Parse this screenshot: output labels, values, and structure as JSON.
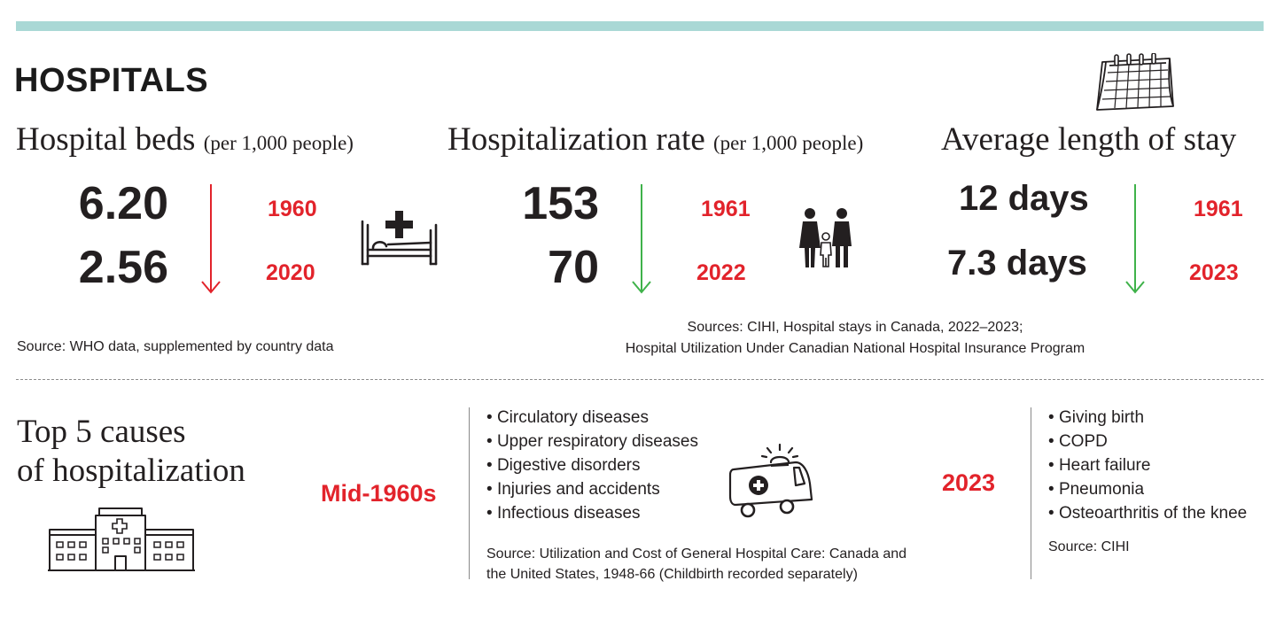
{
  "section_title": "HOSPITALS",
  "beds": {
    "heading": "Hospital beds",
    "unit": "(per 1,000 people)",
    "value_old": "6.20",
    "value_new": "2.56",
    "year_old": "1960",
    "year_new": "2020",
    "trend_color": "#e2232b",
    "icon": "hospital-bed-icon",
    "source": "Source: WHO data, supplemented by country data"
  },
  "rate": {
    "heading": "Hospitalization rate",
    "unit": "(per 1,000 people)",
    "value_old": "153",
    "value_new": "70",
    "year_old": "1961",
    "year_new": "2022",
    "trend_color": "#3fb24a",
    "icon": "family-icon"
  },
  "stay": {
    "heading": "Average length of stay",
    "value_old": "12 days",
    "value_new": "7.3 days",
    "year_old": "1961",
    "year_new": "2023",
    "trend_color": "#3fb24a",
    "icon": "calendar-icon"
  },
  "sources_mid": {
    "line1": "Sources: CIHI, Hospital stays in Canada, 2022–2023;",
    "line2": "Hospital Utilization Under Canadian National Hospital Insurance Program"
  },
  "causes": {
    "heading_line1": "Top 5 causes",
    "heading_line2": "of hospitalization",
    "hospital_icon": "hospital-building-icon",
    "ambulance_icon": "ambulance-icon",
    "period_1960s": "Mid-1960s",
    "list_1960s": [
      "Circulatory diseases",
      "Upper respiratory diseases",
      "Digestive disorders",
      "Injuries and accidents",
      "Infectious diseases"
    ],
    "source_1960s_line1": "Source: Utilization and Cost of General Hospital Care: Canada and",
    "source_1960s_line2": "the United States, 1948-66 (Childbirth recorded separately)",
    "period_2023": "2023",
    "list_2023": [
      "Giving birth",
      "COPD",
      "Heart failure",
      "Pneumonia",
      "Osteoarthritis of the knee"
    ],
    "source_2023": "Source: CIHI"
  },
  "colors": {
    "accent_bar": "#a9d8d5",
    "highlight_red": "#e2232b",
    "decrease_green": "#3fb24a",
    "text": "#231f20"
  }
}
